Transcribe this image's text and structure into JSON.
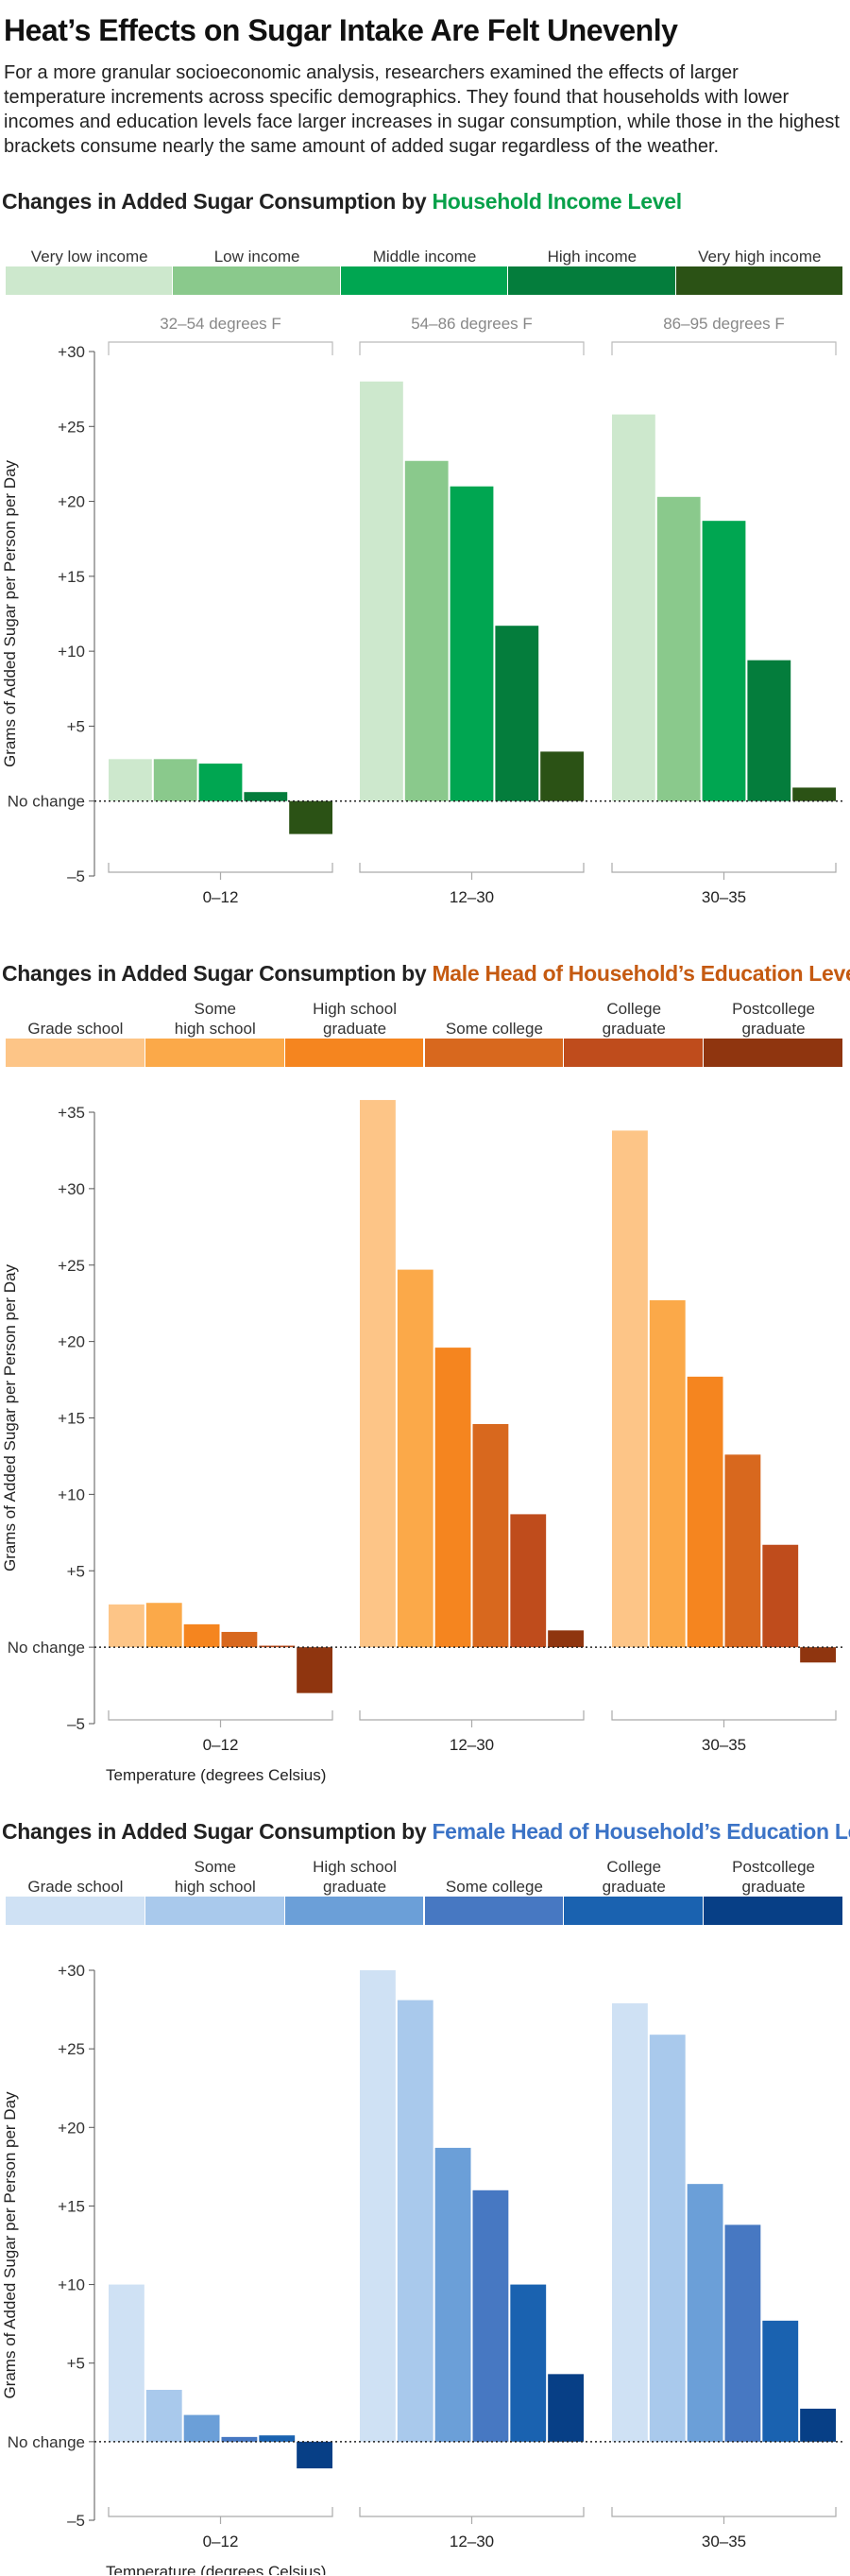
{
  "title": "Heat’s Effects on Sugar Intake Are Felt Unevenly",
  "intro": "For a more granular socioeconomic analysis, researchers examined the effects of larger temperature increments across specific demographics. They found that households with lower incomes and education levels face larger increases in sugar consumption, while those in the highest brackets consume nearly the same amount of added sugar regardless of the weather.",
  "common": {
    "ylabel": "Grams of Added Sugar per Person per Day",
    "xlabel": "Temperature (degrees Celsius)",
    "no_change_label": "No change",
    "groups": [
      "0–12",
      "12–30",
      "30–35"
    ],
    "fahrenheit": [
      "32–54 degrees F",
      "54–86 degrees F",
      "86–95 degrees F"
    ]
  },
  "chart_data": [
    {
      "type": "bar",
      "title_prefix": "Changes in Added Sugar Consumption by ",
      "title_highlight": "Household Income Level",
      "highlight_color": "#07a14a",
      "categories": [
        "0–12",
        "12–30",
        "30–35"
      ],
      "series": [
        {
          "name": "Very low income",
          "color": "#cde8cd",
          "values": [
            2.8,
            28.0,
            25.8
          ]
        },
        {
          "name": "Low income",
          "color": "#8ac98c",
          "values": [
            2.8,
            22.7,
            20.3
          ]
        },
        {
          "name": "Middle income",
          "color": "#00a651",
          "values": [
            2.5,
            21.0,
            18.7
          ]
        },
        {
          "name": "High income",
          "color": "#047d3c",
          "values": [
            0.6,
            11.7,
            9.4
          ]
        },
        {
          "name": "Very high income",
          "color": "#2b5215",
          "values": [
            -2.2,
            3.3,
            0.9
          ]
        }
      ],
      "ylim": [
        -5,
        30
      ],
      "yticks": [
        30,
        25,
        20,
        15,
        10,
        5,
        0,
        -5
      ],
      "ytick_labels": [
        "+30",
        "+25",
        "+20",
        "+15",
        "+10",
        "+5",
        "No change",
        "–5"
      ],
      "xlabel": "Temperature (degrees Celsius)",
      "ylabel": "Grams of Added Sugar per Person per Day",
      "show_fahrenheit": true
    },
    {
      "type": "bar",
      "title_prefix": "Changes in Added Sugar Consumption by ",
      "title_highlight": "Male Head of Household’s Education Level",
      "highlight_color": "#c55a11",
      "categories": [
        "0–12",
        "12–30",
        "30–35"
      ],
      "series": [
        {
          "name": "Grade school",
          "color": "#fdc587",
          "values": [
            2.8,
            35.8,
            33.8
          ]
        },
        {
          "name": "Some\nhigh school",
          "color": "#fba949",
          "values": [
            2.9,
            24.7,
            22.7
          ]
        },
        {
          "name": "High school\ngraduate",
          "color": "#f5851f",
          "values": [
            1.5,
            19.6,
            17.7
          ]
        },
        {
          "name": "Some college",
          "color": "#d8681e",
          "values": [
            1.0,
            14.6,
            12.6
          ]
        },
        {
          "name": "College\ngraduate",
          "color": "#bf4c1c",
          "values": [
            0.1,
            8.7,
            6.7
          ]
        },
        {
          "name": "Postcollege\ngraduate",
          "color": "#8f350f",
          "values": [
            -3.0,
            1.1,
            -1.0
          ]
        }
      ],
      "ylim": [
        -5,
        35
      ],
      "yticks": [
        35,
        30,
        25,
        20,
        15,
        10,
        5,
        0,
        -5
      ],
      "ytick_labels": [
        "+35",
        "+30",
        "+25",
        "+20",
        "+15",
        "+10",
        "+5",
        "No change",
        "–5"
      ],
      "xlabel": "Temperature (degrees Celsius)",
      "ylabel": "Grams of Added Sugar per Person per Day",
      "show_fahrenheit": false
    },
    {
      "type": "bar",
      "title_prefix": "Changes in Added Sugar Consumption by ",
      "title_highlight": "Female Head of Household’s Education Level",
      "highlight_color": "#3b73c6",
      "categories": [
        "0–12",
        "12–30",
        "30–35"
      ],
      "series": [
        {
          "name": "Grade school",
          "color": "#cfe1f4",
          "values": [
            10.0,
            30.0,
            27.9
          ]
        },
        {
          "name": "Some\nhigh school",
          "color": "#a9c9ec",
          "values": [
            3.3,
            28.1,
            25.9
          ]
        },
        {
          "name": "High school\ngraduate",
          "color": "#6b9fd8",
          "values": [
            1.7,
            18.7,
            16.4
          ]
        },
        {
          "name": "Some college",
          "color": "#4778c2",
          "values": [
            0.3,
            16.0,
            13.8
          ]
        },
        {
          "name": "College\ngraduate",
          "color": "#1a62b0",
          "values": [
            0.4,
            10.0,
            7.7
          ]
        },
        {
          "name": "Postcollege\ngraduate",
          "color": "#073f86",
          "values": [
            -1.7,
            4.3,
            2.1
          ]
        }
      ],
      "ylim": [
        -5,
        30
      ],
      "yticks": [
        30,
        25,
        20,
        15,
        10,
        5,
        0,
        -5
      ],
      "ytick_labels": [
        "+30",
        "+25",
        "+20",
        "+15",
        "+10",
        "+5",
        "No change",
        "–5"
      ],
      "xlabel": "Temperature (degrees Celsius)",
      "ylabel": "Grams of Added Sugar per Person per Day",
      "show_fahrenheit": false
    }
  ]
}
